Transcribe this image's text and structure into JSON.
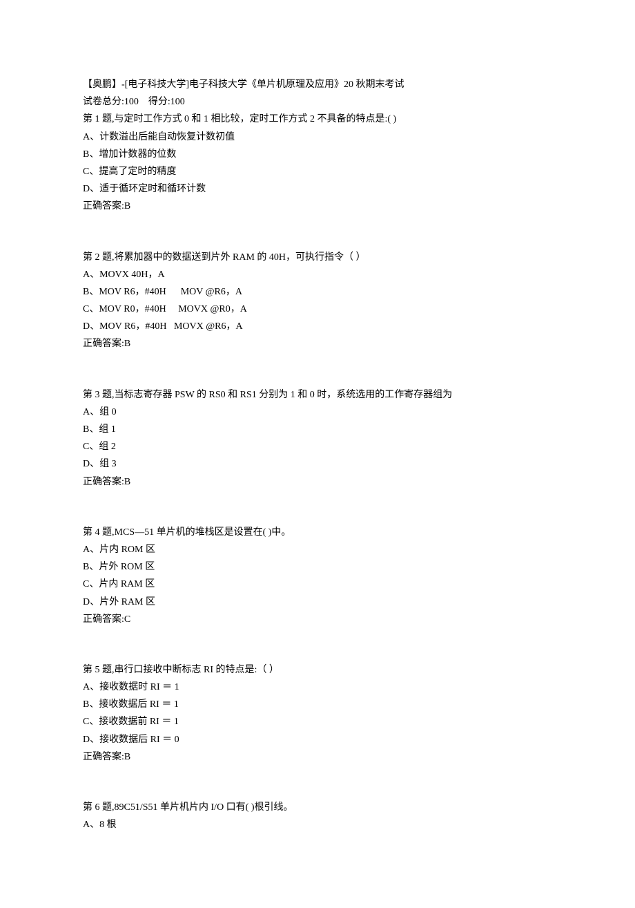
{
  "header": {
    "title": "【奥鹏】-[电子科技大学]电子科技大学《单片机原理及应用》20 秋期末考试",
    "score_line": "试卷总分:100    得分:100"
  },
  "questions": [
    {
      "stem": "第 1 题,与定时工作方式 0 和 1 相比较，定时工作方式 2 不具备的特点是:( )",
      "options": [
        "A、计数溢出后能自动恢复计数初值",
        "B、增加计数器的位数",
        "C、提高了定时的精度",
        "D、适于循环定时和循环计数"
      ],
      "answer": "正确答案:B"
    },
    {
      "stem": "第 2 题,将累加器中的数据送到片外 RAM 的 40H，可执行指令（ ）",
      "options": [
        "A、MOVX 40H，A",
        "B、MOV R6，#40H      MOV @R6，A",
        "C、MOV R0，#40H     MOVX @R0，A",
        "D、MOV R6，#40H   MOVX @R6，A"
      ],
      "answer": "正确答案:B"
    },
    {
      "stem": "第 3 题,当标志寄存器 PSW 的 RS0 和 RS1 分别为 1 和 0 时，系统选用的工作寄存器组为",
      "options": [
        "A、组 0",
        "B、组 1",
        "C、组 2",
        "D、组 3"
      ],
      "answer": "正确答案:B"
    },
    {
      "stem": "第 4 题,MCS—51 单片机的堆栈区是设置在( )中。",
      "options": [
        "A、片内 ROM 区",
        "B、片外 ROM 区",
        "C、片内 RAM 区",
        "D、片外 RAM 区"
      ],
      "answer": "正确答案:C"
    },
    {
      "stem": "第 5 题,串行口接收中断标志 RI 的特点是:（ ）",
      "options": [
        "A、接收数据时 RI ＝ 1",
        "B、接收数据后 RI ＝ 1",
        "C、接收数据前 RI ＝ 1",
        "D、接收数据后 RI ＝ 0"
      ],
      "answer": "正确答案:B"
    },
    {
      "stem": "第 6 题,89C51/S51 单片机片内 I/O 口有( )根引线。",
      "options": [
        "A、8 根"
      ],
      "answer": ""
    }
  ]
}
